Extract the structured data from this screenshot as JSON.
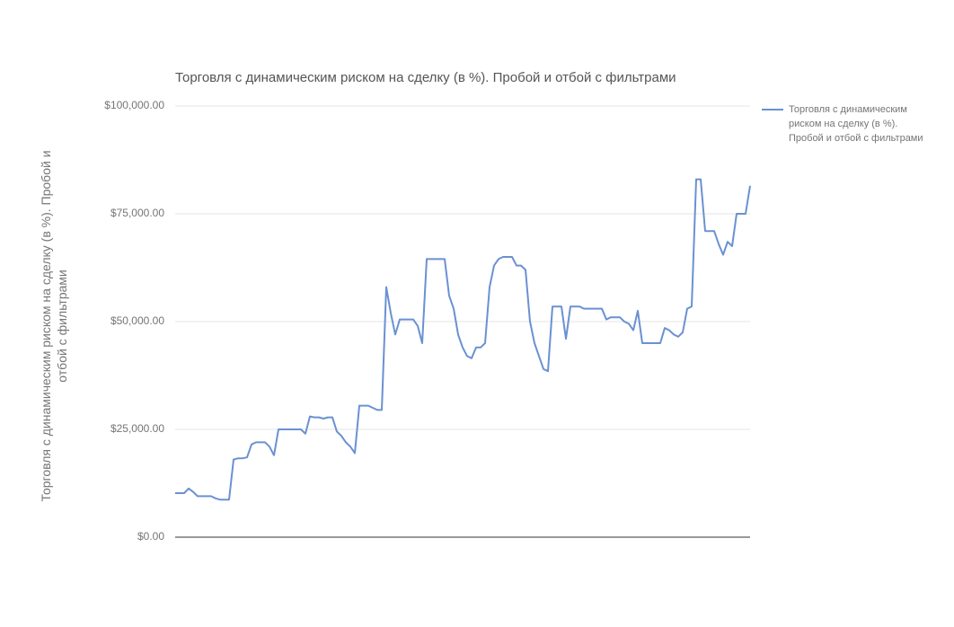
{
  "chart_data": {
    "type": "line",
    "title": "Торговля с динамическим риском на сделку (в %). Пробой и отбой с фильтрами",
    "y_label": "Торговля с динамическим риском на сделку (в %). Пробой и отбой с фильтрами",
    "ylim": [
      0,
      100000
    ],
    "yticks": [
      {
        "value": 0,
        "label": "$0.00"
      },
      {
        "value": 25000,
        "label": "$25,000.00"
      },
      {
        "value": 50000,
        "label": "$50,000.00"
      },
      {
        "value": 75000,
        "label": "$75,000.00"
      },
      {
        "value": 100000,
        "label": "$100,000.00"
      }
    ],
    "grid": true,
    "legend": "right",
    "series": [
      {
        "name": "Торговля с динамическим риском на сделку (в %). Пробой и отбой с фильтрами",
        "color": "#6a91d2",
        "values": [
          10200,
          10200,
          10200,
          11300,
          10500,
          9500,
          9500,
          9500,
          9500,
          9000,
          8700,
          8700,
          8700,
          18000,
          18300,
          18300,
          18500,
          21500,
          22000,
          22000,
          22000,
          21000,
          19000,
          25000,
          25000,
          25000,
          25000,
          25000,
          25000,
          24000,
          28000,
          27800,
          27800,
          27500,
          27800,
          27800,
          24500,
          23500,
          22000,
          21000,
          19500,
          30500,
          30500,
          30500,
          30000,
          29500,
          29500,
          58000,
          52000,
          47000,
          50500,
          50500,
          50500,
          50500,
          49000,
          45000,
          64500,
          64500,
          64500,
          64500,
          64500,
          56000,
          53000,
          47000,
          44000,
          42000,
          41500,
          44000,
          44000,
          45000,
          58000,
          63000,
          64500,
          65000,
          65000,
          65000,
          63000,
          63000,
          62000,
          50000,
          45000,
          42000,
          39000,
          38500,
          53500,
          53500,
          53500,
          46000,
          53500,
          53500,
          53500,
          53000,
          53000,
          53000,
          53000,
          53000,
          50500,
          51000,
          51000,
          51000,
          50000,
          49500,
          48000,
          52500,
          45000,
          45000,
          45000,
          45000,
          45000,
          48500,
          48000,
          47000,
          46500,
          47500,
          53000,
          53500,
          83000,
          83000,
          71000,
          71000,
          71000,
          68000,
          65500,
          68500,
          67500,
          75000,
          75000,
          75000,
          81500
        ]
      }
    ]
  }
}
